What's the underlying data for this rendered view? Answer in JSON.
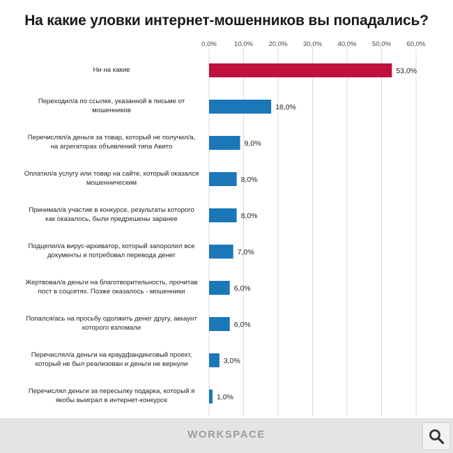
{
  "footer": {
    "brand": "WORKSPACE"
  },
  "chart_data": {
    "type": "bar",
    "orientation": "horizontal",
    "title": "На какие уловки интернет-мошенников вы попадались?",
    "xlim": [
      0,
      60
    ],
    "ticks": [
      "0,0%",
      "10,0%",
      "20,0%",
      "30,0%",
      "40,0%",
      "50,0%",
      "60,0%"
    ],
    "tick_values": [
      0,
      10,
      20,
      30,
      40,
      50,
      60
    ],
    "grid": true,
    "highlight_color": "#c0103e",
    "bar_color": "#1a77b8",
    "categories": [
      [
        "Ни на какие"
      ],
      [
        "Переходил/а по ссылке, указанной в письме от",
        "мошенников"
      ],
      [
        "Перечислял/а деньги за товар, который не получил/а,",
        "на агрегаторах объявлений типа Авито"
      ],
      [
        "Оплатил/а услугу или товар на сайте, который оказался",
        "мошенническим"
      ],
      [
        "Принимал/а участие в конкурсе, результаты которого",
        "как оказалось, были предрешены заранее"
      ],
      [
        "Подцепил/а вирус-архиватор, который запоролил все",
        "документы и потребовал перевода денег"
      ],
      [
        "Жертвовал/а деньги на благотворительность, прочитав",
        "пост в соцсетях. Позже оказалось - мошенники"
      ],
      [
        "Попался/ась на просьбу одолжить денег другу, аккаунт",
        "которого взломали"
      ],
      [
        "Перечислял/а деньги на краудфандинговый проект,",
        "который не был реализован и деньги не вернули"
      ],
      [
        "Перечислял деньги за пересылку подарка, который я",
        "якобы выиграл в интернет-конкурсе"
      ]
    ],
    "values": [
      53,
      18,
      9,
      8,
      8,
      7,
      6,
      6,
      3,
      1
    ],
    "value_labels": [
      "53,0%",
      "18,0%",
      "9,0%",
      "8,0%",
      "8,0%",
      "7,0%",
      "6,0%",
      "6,0%",
      "3,0%",
      "1,0%"
    ]
  }
}
